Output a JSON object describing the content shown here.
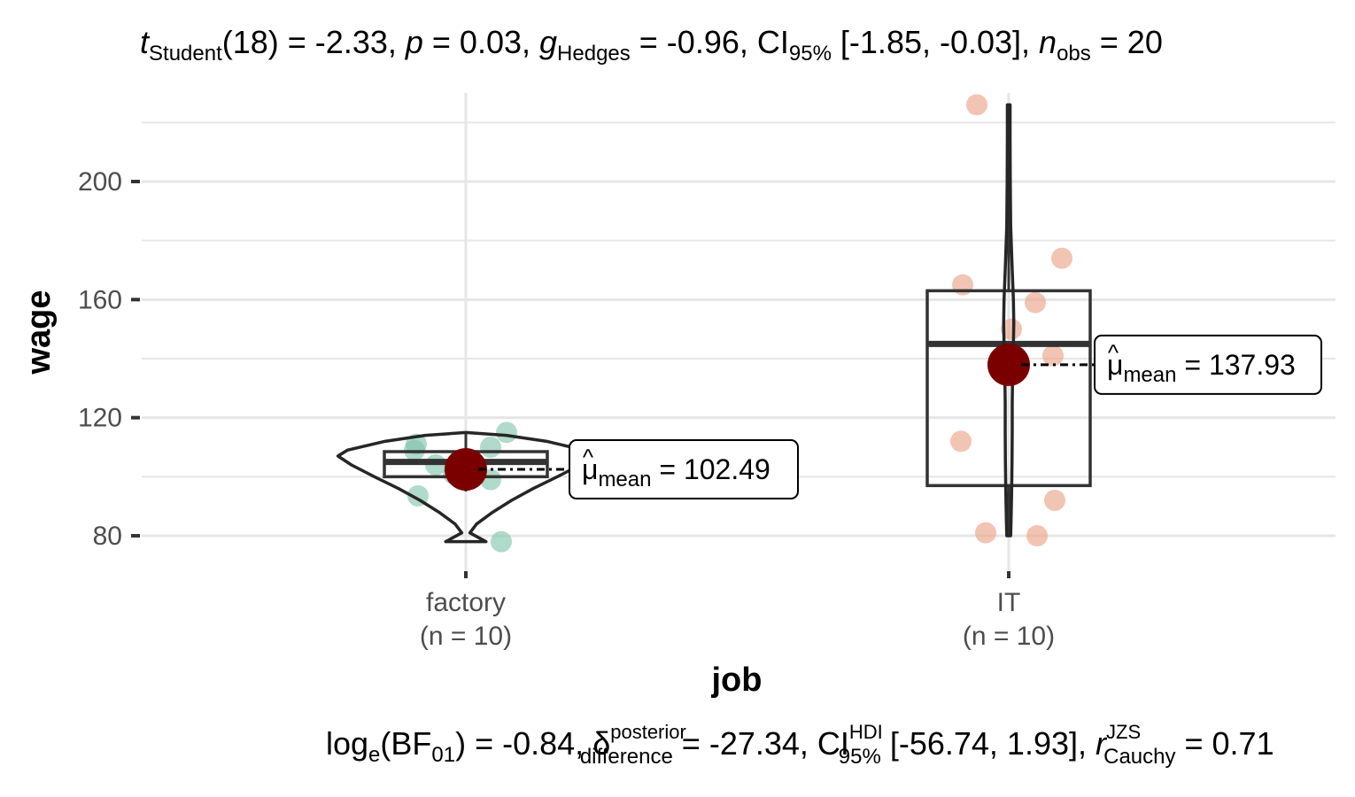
{
  "chart_data": {
    "type": "violin-box-scatter",
    "title": {
      "t_symbol": "t",
      "t_sub": "Student",
      "df": "(18)",
      "t_value": " = -2.33, ",
      "p_symbol": "p",
      "p_value": " = 0.03, ",
      "g_symbol": "g",
      "g_sub": "Hedges",
      "g_value": " = -0.96, CI",
      "ci_sub": "95%",
      "ci_value": " [-1.85, -0.03], ",
      "n_symbol": "n",
      "n_sub": "obs",
      "n_value": " = 20"
    },
    "caption": {
      "log_text": "log",
      "log_sub": "e",
      "bf_open": "(BF",
      "bf_sub": "01",
      "bf_close": ") = -0.84, ",
      "delta_symbol": "δ",
      "delta_sup": "posterior",
      "delta_sub": "difference",
      "delta_value": " = -27.34, CI",
      "ci_sup": "HDI",
      "ci_sub": "95%",
      "ci_value": " [-56.74, 1.93], ",
      "r_symbol": "r",
      "r_sup": "JZS",
      "r_sub": "Cauchy",
      "r_value": " = 0.71"
    },
    "xlabel": "job",
    "ylabel": "wage",
    "ylim": [
      68,
      230
    ],
    "y_ticks": [
      80,
      120,
      160,
      200
    ],
    "y_minor_gridlines": [
      100,
      140,
      180,
      220
    ],
    "grid": true,
    "mean_label_prefix": "μ",
    "mean_label_sub": "mean",
    "groups": [
      {
        "name": "factory",
        "n_label": "(n = 10)",
        "color": "#7fc4aa",
        "points": [
          111,
          109,
          104,
          93.5,
          78,
          110,
          99,
          115,
          101,
          105
        ],
        "box": {
          "q1": 100,
          "median": 105,
          "q3": 108.5,
          "whisker_low": 95,
          "whisker_high": 115
        },
        "violin": [
          [
            78,
            0.15
          ],
          [
            81,
            0.03
          ],
          [
            84,
            0.08
          ],
          [
            88,
            0.2
          ],
          [
            92,
            0.34
          ],
          [
            96,
            0.5
          ],
          [
            100,
            0.68
          ],
          [
            104,
            0.85
          ],
          [
            107,
            0.95
          ],
          [
            109,
            0.88
          ],
          [
            112,
            0.6
          ],
          [
            114,
            0.3
          ],
          [
            115,
            0.0
          ]
        ],
        "mean": 102.49,
        "mean_label": "= 102.49"
      },
      {
        "name": "IT",
        "n_label": "(n = 10)",
        "color": "#e8a084",
        "points": [
          226,
          174,
          165,
          159,
          150,
          141,
          112,
          92,
          81,
          80
        ],
        "box": {
          "q1": 97,
          "median": 145,
          "q3": 163,
          "whisker_low": 80,
          "whisker_high": 226
        },
        "violin": [
          [
            80,
            0.1
          ],
          [
            85,
            0.12
          ],
          [
            95,
            0.15
          ],
          [
            105,
            0.17
          ],
          [
            115,
            0.18
          ],
          [
            125,
            0.18
          ],
          [
            135,
            0.2
          ],
          [
            145,
            0.24
          ],
          [
            152,
            0.26
          ],
          [
            160,
            0.24
          ],
          [
            170,
            0.18
          ],
          [
            185,
            0.1
          ],
          [
            200,
            0.08
          ],
          [
            215,
            0.07
          ],
          [
            226,
            0.07
          ]
        ],
        "mean": 137.93,
        "mean_label": "= 137.93"
      }
    ],
    "colors": {
      "mean_dot": "#7a0000",
      "box_line": "#333333",
      "grid": "#e6e6e6"
    }
  }
}
